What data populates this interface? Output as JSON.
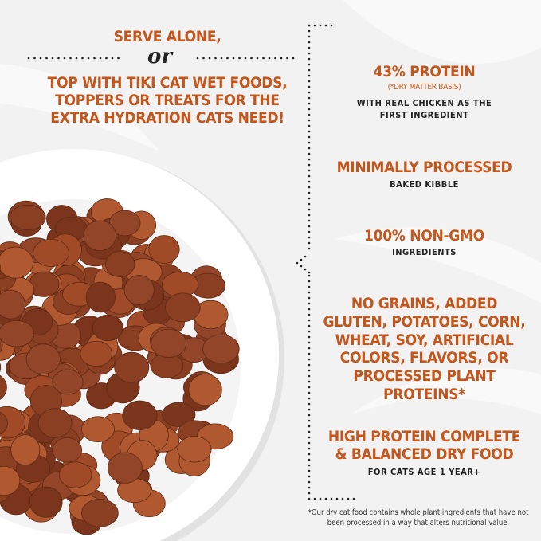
{
  "left": {
    "line1": "SERVE ALONE,",
    "or": "or",
    "line2": "TOP WITH TIKI CAT WET FOODS, TOPPERS OR TREATS FOR THE EXTRA HYDRATION CATS NEED!"
  },
  "features": [
    {
      "title": "43% PROTEIN",
      "note": "(*DRY MATTER BASIS)",
      "sub": "WITH REAL CHICKEN AS THE FIRST INGREDIENT"
    },
    {
      "title": "MINIMALLY PROCESSED",
      "sub": "BAKED KIBBLE"
    },
    {
      "title": "100% NON-GMO",
      "sub": "INGREDIENTS"
    },
    {
      "title": "NO GRAINS, ADDED GLUTEN, POTATOES, CORN, WHEAT, SOY, ARTIFICIAL COLORS, FLAVORS, OR PROCESSED PLANT PROTEINS*"
    },
    {
      "title": "HIGH PROTEIN COMPLETE & BALANCED DRY FOOD",
      "sub": "FOR CATS AGE 1 YEAR+"
    }
  ],
  "footnote": "*Our dry cat food contains whole plant ingredients that have not been processed in a way that alters nutritional value.",
  "colors": {
    "accent": "#c4561c",
    "text": "#222222",
    "background": "#f2f2f2"
  }
}
